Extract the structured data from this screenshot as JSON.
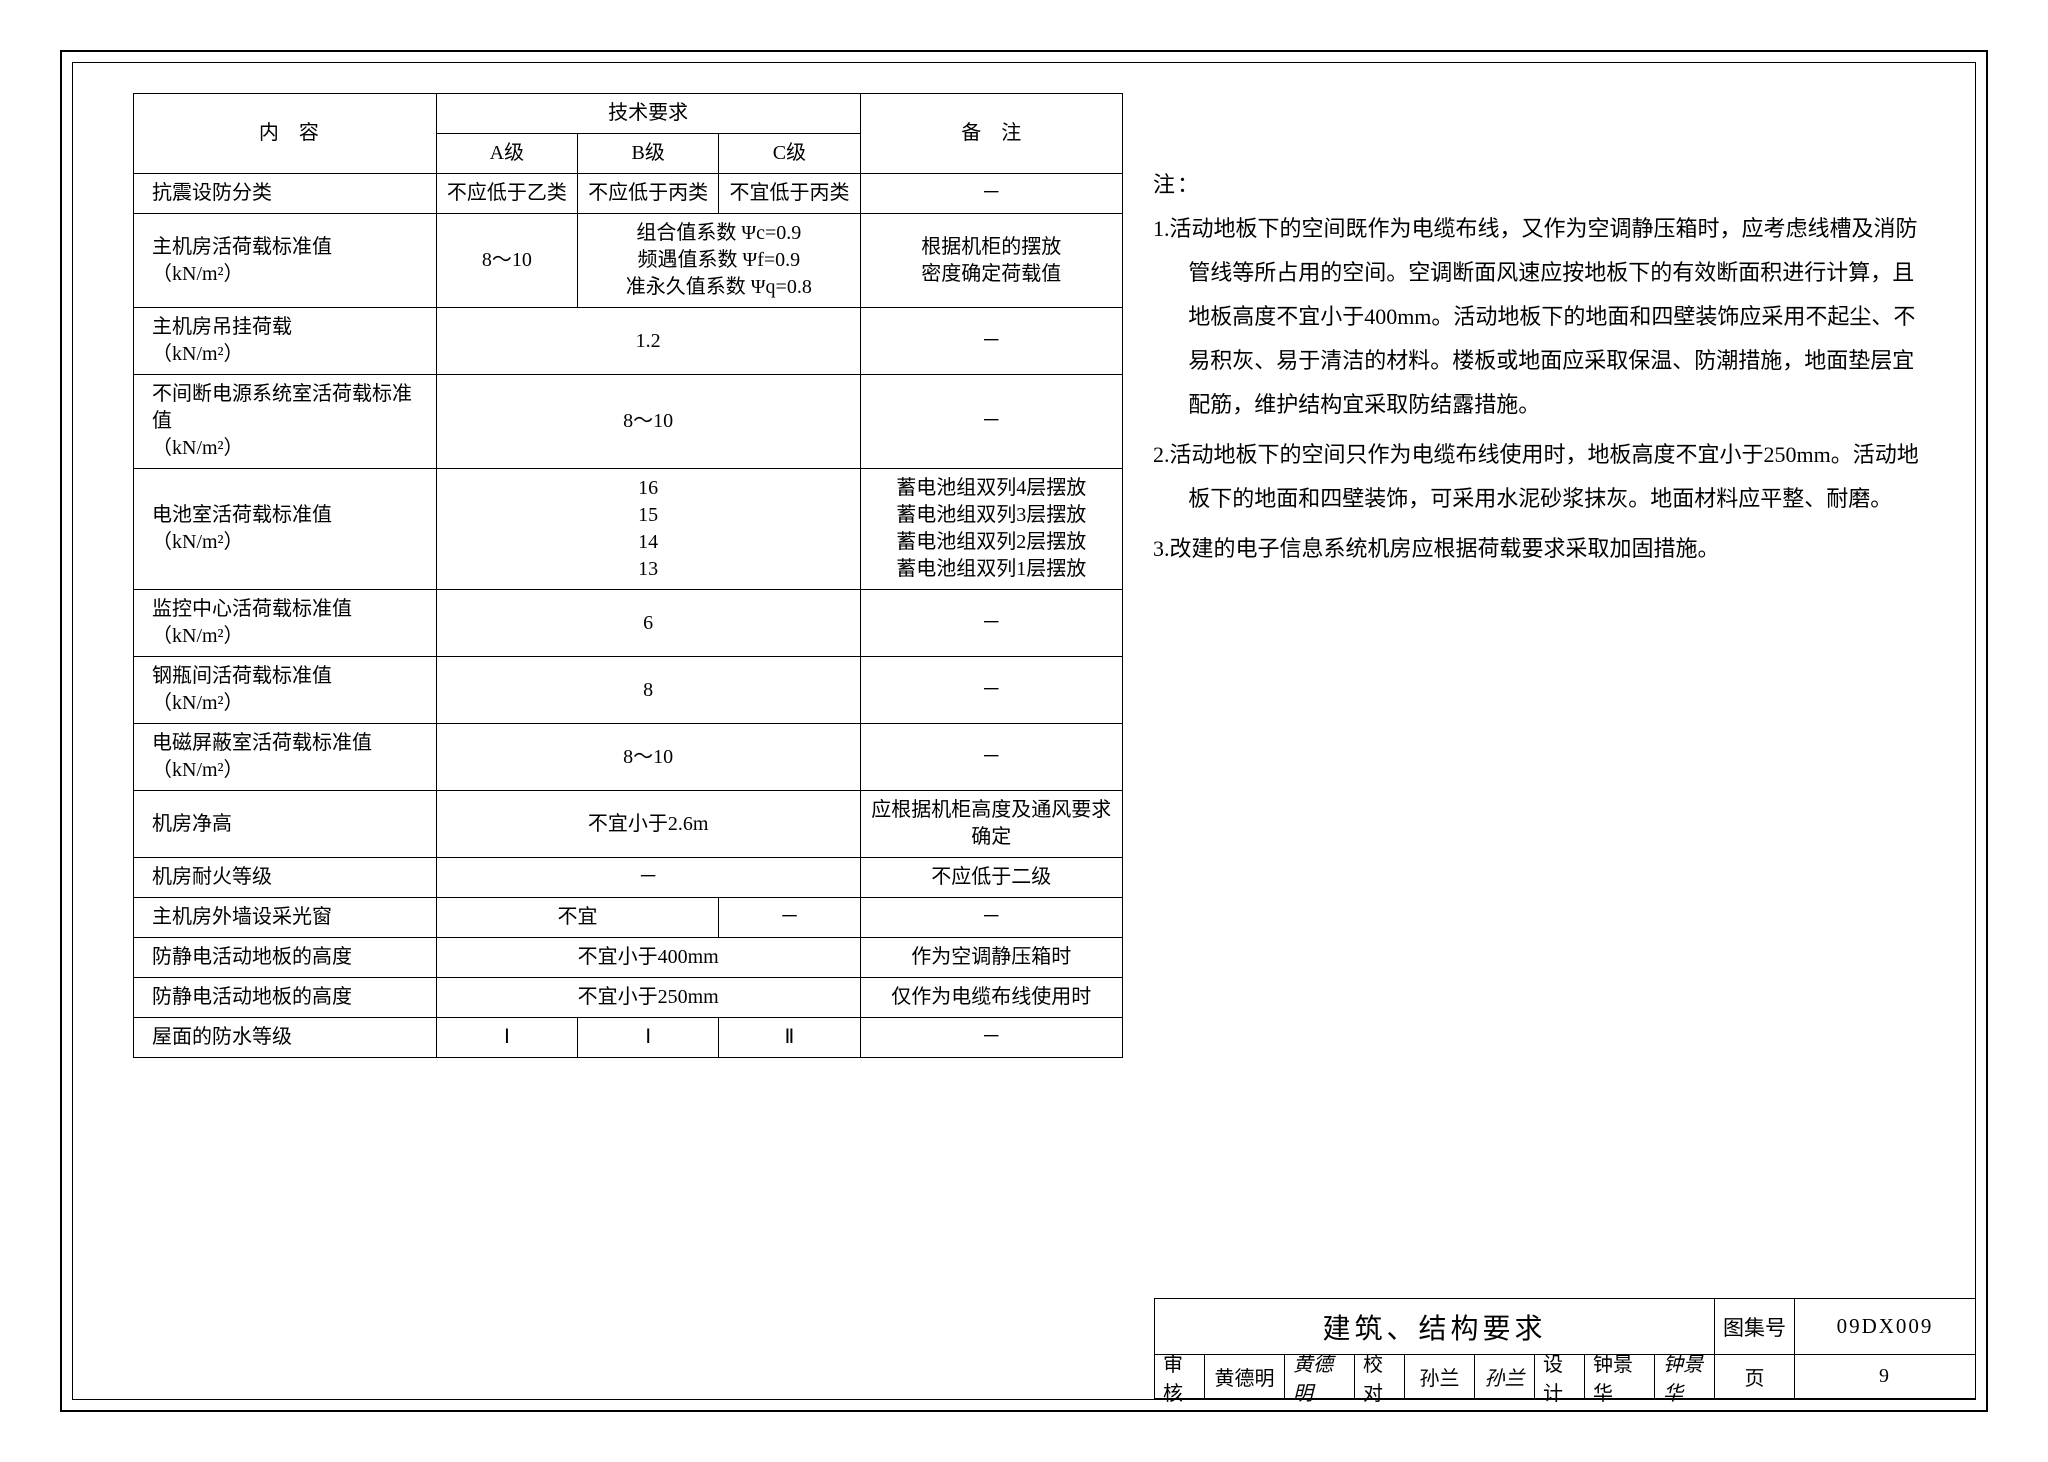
{
  "table": {
    "head": {
      "content": "内　容",
      "tech": "技术要求",
      "a": "A级",
      "b": "B级",
      "c": "C级",
      "remark": "备　注"
    },
    "rows": [
      {
        "content": "抗震设防分类",
        "a": "不应低于乙类",
        "b": "不应低于丙类",
        "c": "不宜低于丙类",
        "remark": "－"
      },
      {
        "content": "主机房活荷载标准值\n（kN/m²）",
        "a": "8～10",
        "bc": "组合值系数 Ψc=0.9\n频遇值系数 Ψf=0.9\n准永久值系数 Ψq=0.8",
        "remark": "根据机柜的摆放\n密度确定荷载值"
      },
      {
        "content": "主机房吊挂荷载\n（kN/m²）",
        "abc": "1.2",
        "remark": "－"
      },
      {
        "content": "不间断电源系统室活荷载标准值\n（kN/m²）",
        "abc": "8～10",
        "remark": "－"
      },
      {
        "content": "电池室活荷载标准值\n（kN/m²）",
        "abc": "16\n15\n14\n13",
        "remark": "蓄电池组双列4层摆放\n蓄电池组双列3层摆放\n蓄电池组双列2层摆放\n蓄电池组双列1层摆放"
      },
      {
        "content": "监控中心活荷载标准值\n（kN/m²）",
        "abc": "6",
        "remark": "－"
      },
      {
        "content": "钢瓶间活荷载标准值\n（kN/m²）",
        "abc": "8",
        "remark": "－"
      },
      {
        "content": "电磁屏蔽室活荷载标准值\n（kN/m²）",
        "abc": "8～10",
        "remark": "－"
      },
      {
        "content": "机房净高",
        "abc": "不宜小于2.6m",
        "remark": "应根据机柜高度及通风要求确定"
      },
      {
        "content": "机房耐火等级",
        "abc": "－",
        "remark": "不应低于二级"
      },
      {
        "content": "主机房外墙设采光窗",
        "ab": "不宜",
        "c": "－",
        "remark": "－"
      },
      {
        "content": "防静电活动地板的高度",
        "abc": "不宜小于400mm",
        "remark": "作为空调静压箱时"
      },
      {
        "content": "防静电活动地板的高度",
        "abc": "不宜小于250mm",
        "remark": "仅作为电缆布线使用时"
      },
      {
        "content": "屋面的防水等级",
        "a": "Ⅰ",
        "b": "Ⅰ",
        "c": "Ⅱ",
        "remark": "－"
      }
    ]
  },
  "notes": {
    "label": "注：",
    "items": [
      "1.活动地板下的空间既作为电缆布线，又作为空调静压箱时，应考虑线槽及消防管线等所占用的空间。空调断面风速应按地板下的有效断面积进行计算，且地板高度不宜小于400mm。活动地板下的地面和四壁装饰应采用不起尘、不易积灰、易于清洁的材料。楼板或地面应采取保温、防潮措施，地面垫层宜配筋，维护结构宜采取防结露措施。",
      "2.活动地板下的空间只作为电缆布线使用时，地板高度不宜小于250mm。活动地板下的地面和四壁装饰，可采用水泥砂浆抹灰。地面材料应平整、耐磨。",
      "3.改建的电子信息系统机房应根据荷载要求采取加固措施。"
    ]
  },
  "titleblock": {
    "title": "建筑、结构要求",
    "atlas_label": "图集号",
    "atlas_value": "09DX009",
    "page_label": "页",
    "page_value": "9",
    "review_label": "审核",
    "review_name": "黄德明",
    "review_sig": "黄德明",
    "check_label": "校对",
    "check_name": "孙兰",
    "check_sig": "孙兰",
    "design_label": "设计",
    "design_name": "钟景华",
    "design_sig": "钟景华"
  }
}
